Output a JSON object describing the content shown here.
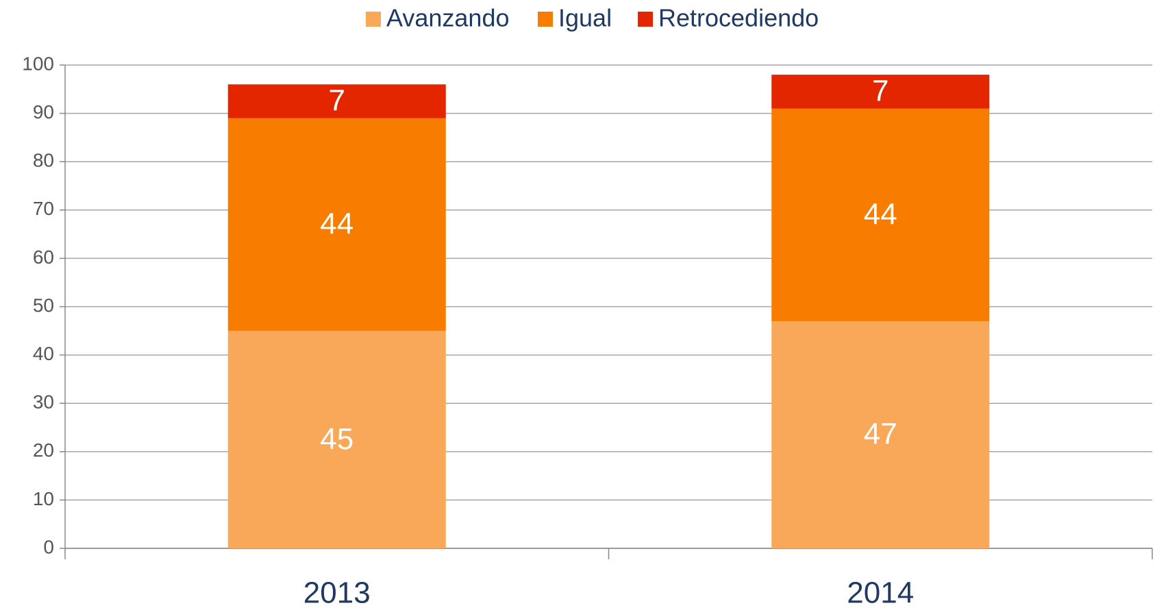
{
  "chart_data": {
    "type": "stacked_bar",
    "categories": [
      "2013",
      "2014"
    ],
    "series": [
      {
        "name": "Avanzando",
        "color": "#f8a858",
        "values": [
          45,
          47
        ]
      },
      {
        "name": "Igual",
        "color": "#f77c00",
        "values": [
          44,
          44
        ]
      },
      {
        "name": "Retrocediendo",
        "color": "#e42600",
        "values": [
          7,
          7
        ]
      }
    ],
    "ylim": [
      0,
      100
    ],
    "yticks": [
      0,
      10,
      20,
      30,
      40,
      50,
      60,
      70,
      80,
      90,
      100
    ],
    "grid": true,
    "legend": "top"
  }
}
